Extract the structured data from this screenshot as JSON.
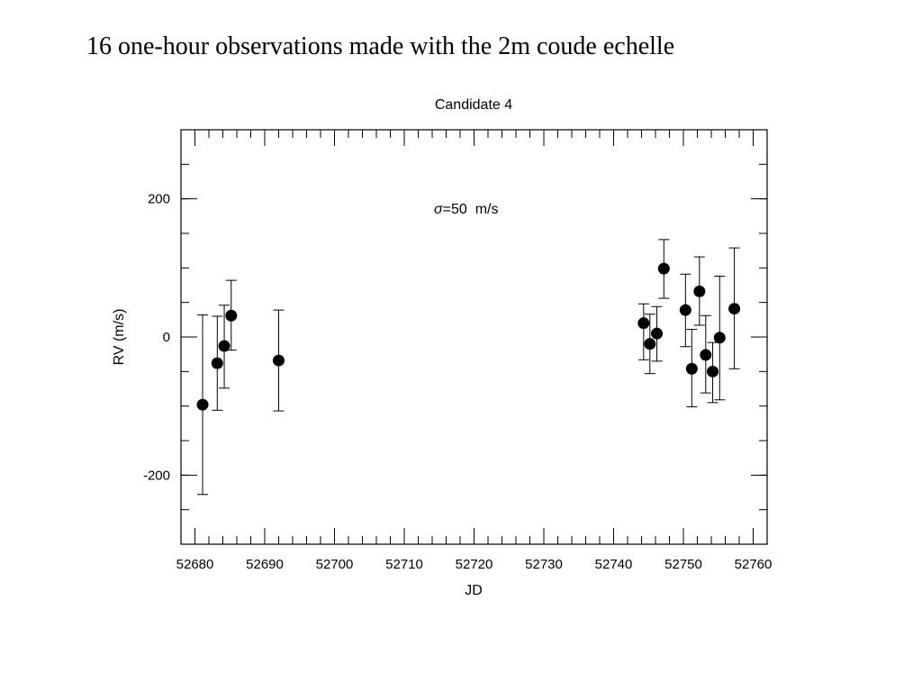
{
  "slide": {
    "title": "16 one-hour observations made with the 2m coude echelle"
  },
  "chart_data": {
    "type": "scatter",
    "title": "Candidate 4",
    "xlabel": "JD",
    "ylabel": "RV (m/s)",
    "annotation": {
      "symbol": "σ",
      "text": "=50  m/s"
    },
    "xlim": [
      52678,
      52762
    ],
    "ylim": [
      -300,
      300
    ],
    "x_ticks": [
      52680,
      52690,
      52700,
      52710,
      52720,
      52730,
      52740,
      52750,
      52760
    ],
    "y_ticks": [
      -200,
      0,
      200
    ],
    "x_minor_step": 2,
    "y_minor_step": 50,
    "grid": false,
    "legend": "none",
    "series": [
      {
        "marker_color": "#000000",
        "points": [
          {
            "x": 52681.1,
            "y": -98,
            "err_low": -228,
            "err_high": 32
          },
          {
            "x": 52683.2,
            "y": -38,
            "err_low": -106,
            "err_high": 30
          },
          {
            "x": 52684.2,
            "y": -13,
            "err_low": -74,
            "err_high": 46
          },
          {
            "x": 52685.2,
            "y": 31,
            "err_low": -19,
            "err_high": 82
          },
          {
            "x": 52692.0,
            "y": -34,
            "err_low": -107,
            "err_high": 39
          },
          {
            "x": 52744.3,
            "y": 20,
            "err_low": -33,
            "err_high": 48
          },
          {
            "x": 52745.2,
            "y": -10,
            "err_low": -53,
            "err_high": 33
          },
          {
            "x": 52746.2,
            "y": 5,
            "err_low": -35,
            "err_high": 44
          },
          {
            "x": 52747.2,
            "y": 99,
            "err_low": 56,
            "err_high": 141
          },
          {
            "x": 52750.3,
            "y": 39,
            "err_low": -14,
            "err_high": 91
          },
          {
            "x": 52751.2,
            "y": -46,
            "err_low": -101,
            "err_high": 11
          },
          {
            "x": 52752.3,
            "y": 66,
            "err_low": 17,
            "err_high": 116
          },
          {
            "x": 52753.2,
            "y": -26,
            "err_low": -81,
            "err_high": 31
          },
          {
            "x": 52754.2,
            "y": -50,
            "err_low": -95,
            "err_high": -8
          },
          {
            "x": 52755.2,
            "y": -1,
            "err_low": -91,
            "err_high": 88
          },
          {
            "x": 52757.3,
            "y": 41,
            "err_low": -46,
            "err_high": 129
          }
        ]
      }
    ]
  }
}
